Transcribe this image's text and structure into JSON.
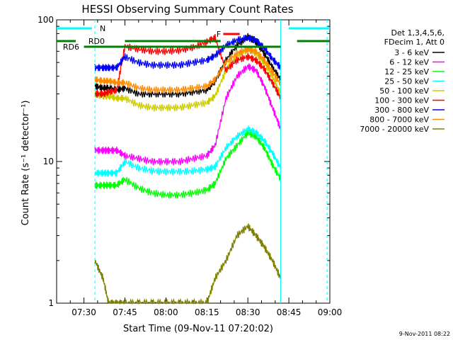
{
  "chart_data": {
    "type": "line",
    "title": "HESSI Observing Summary Count Rates",
    "xlabel": "Start Time (09-Nov-11 07:20:02)",
    "ylabel": "Count Rate (s⁻¹ detector⁻¹)",
    "yscale": "log",
    "ylim": [
      1,
      100
    ],
    "xlim_minutes": [
      0,
      100
    ],
    "x_tick_labels": [
      "07:30",
      "07:45",
      "08:00",
      "08:15",
      "08:30",
      "08:45",
      "09:00"
    ],
    "x_tick_minutes": [
      10,
      25,
      40,
      55,
      70,
      85,
      100
    ],
    "y_tick_labels": [
      "1",
      "10",
      "100"
    ],
    "y_tick_values": [
      1,
      10,
      100
    ],
    "legend": {
      "placement": "right",
      "header": [
        "Det 1,3,4,5,6,",
        "FDecim 1, Att 0"
      ]
    },
    "series": [
      {
        "name": "3 - 6 keV",
        "color": "#000000",
        "x": [
          14,
          17,
          19,
          22,
          25,
          30,
          35,
          40,
          45,
          50,
          55,
          58,
          62,
          66,
          70,
          73,
          76,
          79,
          82
        ],
        "y": [
          34,
          33,
          33,
          32,
          33,
          30,
          30,
          30,
          30,
          31,
          32,
          37,
          52,
          66,
          76,
          70,
          58,
          46,
          38
        ]
      },
      {
        "name": "6 - 12 keV",
        "color": "#ff00ff",
        "x": [
          14,
          17,
          19,
          22,
          25,
          30,
          35,
          40,
          45,
          50,
          55,
          58,
          62,
          66,
          70,
          73,
          76,
          79,
          82
        ],
        "y": [
          12,
          12,
          12,
          12,
          11,
          10.5,
          10,
          10,
          10,
          10.5,
          11,
          13,
          28,
          40,
          47,
          44,
          34,
          24,
          17
        ]
      },
      {
        "name": "12 - 25 keV",
        "color": "#00ff00",
        "x": [
          14,
          17,
          19,
          22,
          25,
          30,
          35,
          40,
          45,
          50,
          55,
          58,
          62,
          66,
          70,
          73,
          76,
          79,
          82
        ],
        "y": [
          6.8,
          6.8,
          6.8,
          6.8,
          7.5,
          6.5,
          6,
          5.8,
          5.8,
          6,
          6.3,
          7,
          10.5,
          13,
          16,
          15,
          12.5,
          9.5,
          7.5
        ]
      },
      {
        "name": "25 - 50 keV",
        "color": "#00ffff",
        "x": [
          14,
          17,
          19,
          22,
          25,
          30,
          35,
          40,
          45,
          50,
          55,
          58,
          62,
          66,
          70,
          73,
          76,
          79,
          82
        ],
        "y": [
          8.3,
          8.3,
          8.3,
          8.3,
          10,
          9,
          8.6,
          8.5,
          8.5,
          8.6,
          8.8,
          9.2,
          12.5,
          15,
          17,
          16,
          14,
          11.5,
          9
        ]
      },
      {
        "name": "50 - 100 keV",
        "color": "#cccc00",
        "x": [
          14,
          17,
          19,
          22,
          25,
          30,
          35,
          40,
          45,
          50,
          55,
          58,
          62,
          66,
          70,
          73,
          76,
          79,
          82
        ],
        "y": [
          30,
          29,
          29,
          28,
          28,
          25,
          24,
          24,
          24,
          25,
          26,
          29,
          44,
          56,
          62,
          58,
          50,
          40,
          30
        ]
      },
      {
        "name": "100 - 300 keV",
        "color": "#ff0000",
        "x": [
          14,
          17,
          19,
          22,
          25,
          30,
          35,
          40,
          45,
          50,
          55,
          58,
          62,
          66,
          70,
          73,
          76,
          79,
          82
        ],
        "y": [
          30,
          30,
          31,
          32,
          65,
          62,
          60,
          60,
          61,
          64,
          70,
          75,
          44,
          52,
          55,
          52,
          45,
          36,
          28
        ]
      },
      {
        "name": "300 - 800 keV",
        "color": "#0000ff",
        "x": [
          14,
          17,
          19,
          22,
          25,
          30,
          35,
          40,
          45,
          50,
          55,
          58,
          62,
          66,
          70,
          73,
          76,
          79,
          82
        ],
        "y": [
          46,
          46,
          46,
          46,
          55,
          50,
          48,
          48,
          48,
          50,
          52,
          56,
          66,
          72,
          75,
          72,
          63,
          53,
          46
        ]
      },
      {
        "name": "800 - 7000 keV",
        "color": "#ff8c00",
        "x": [
          14,
          17,
          19,
          22,
          25,
          30,
          35,
          40,
          45,
          50,
          55,
          58,
          62,
          66,
          70,
          73,
          76,
          79,
          82
        ],
        "y": [
          38,
          37,
          37,
          36,
          36,
          33,
          32,
          32,
          32,
          33,
          34,
          38,
          50,
          58,
          62,
          60,
          52,
          43,
          35
        ]
      },
      {
        "name": "7000 - 20000 keV",
        "color": "#808000",
        "x": [
          14,
          17,
          19,
          22,
          25,
          30,
          35,
          40,
          45,
          50,
          55,
          58,
          62,
          66,
          70,
          73,
          76,
          79,
          82
        ],
        "y": [
          2,
          1.5,
          1,
          1,
          1,
          1,
          1,
          1,
          1,
          1,
          1,
          1.5,
          2,
          3,
          3.5,
          3,
          2.5,
          2,
          1.5
        ]
      }
    ],
    "annotations": [
      {
        "text": "N",
        "x": 14.5,
        "color": "#00ffff"
      },
      {
        "text": "F",
        "x": 58,
        "color": "#ff0000"
      },
      {
        "text": "RD0",
        "x": 8,
        "color": "#008000"
      },
      {
        "text": "RD6",
        "x": 1,
        "color": "#008000"
      }
    ],
    "footer_date": "9-Nov-2011 08:22"
  }
}
